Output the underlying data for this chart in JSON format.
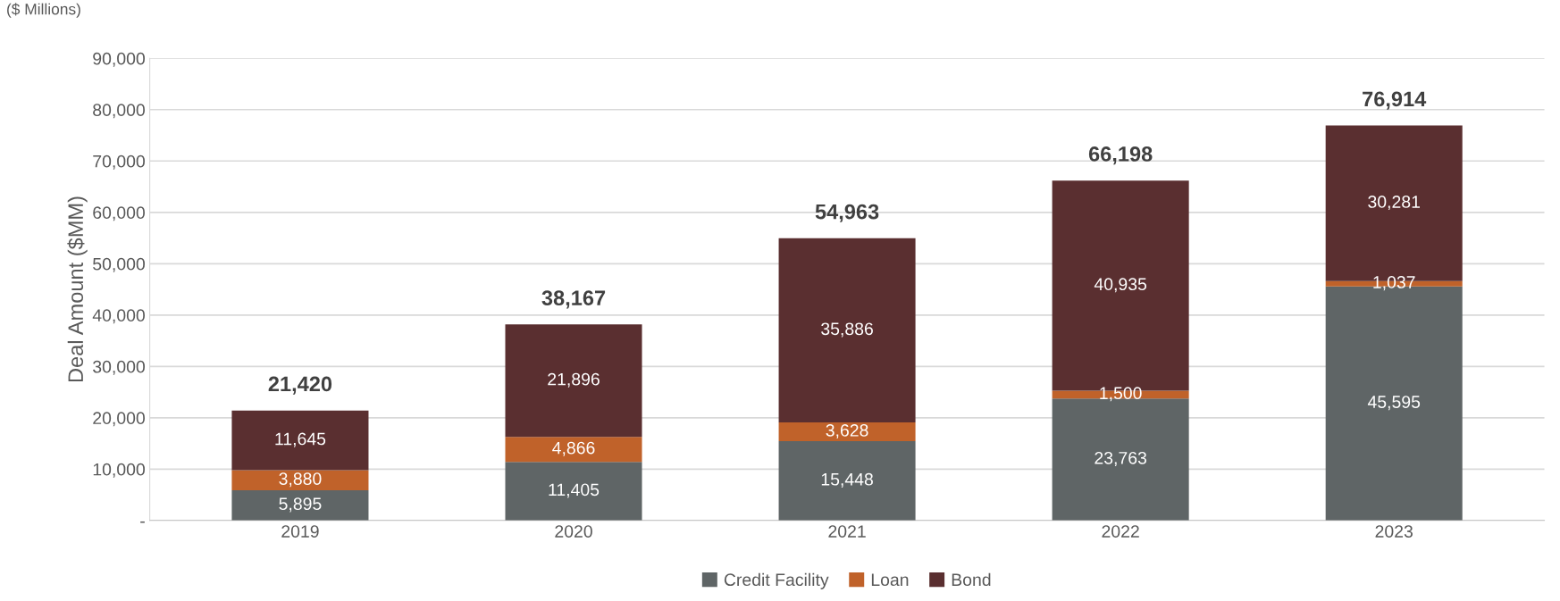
{
  "chart_data": {
    "type": "bar",
    "stacked": true,
    "ylabel": "Deal Amount ($MM)",
    "annotations": [
      "($ Millions)"
    ],
    "categories": [
      "2019",
      "2020",
      "2021",
      "2022",
      "2023"
    ],
    "series": [
      {
        "name": "Credit Facility",
        "color": "#5f6566",
        "values": [
          5895,
          11405,
          15448,
          23763,
          45595
        ],
        "value_labels": [
          "5,895",
          "11,405",
          "15,448",
          "23,763",
          "45,595"
        ]
      },
      {
        "name": "Loan",
        "color": "#c0622a",
        "values": [
          3880,
          4866,
          3628,
          1500,
          1037
        ],
        "value_labels": [
          "3,880",
          "4,866",
          "3,628",
          "1,500",
          "1,037"
        ]
      },
      {
        "name": "Bond",
        "color": "#5a2f30",
        "values": [
          11645,
          21896,
          35886,
          40935,
          30281
        ],
        "value_labels": [
          "11,645",
          "21,896",
          "35,886",
          "40,935",
          "30,281"
        ]
      }
    ],
    "totals": [
      "21,420",
      "38,167",
      "54,963",
      "66,198",
      "76,914"
    ],
    "ylim": [
      0,
      90000
    ],
    "yticks": [
      {
        "value": 0,
        "label": "-"
      },
      {
        "value": 10000,
        "label": "10,000"
      },
      {
        "value": 20000,
        "label": "20,000"
      },
      {
        "value": 30000,
        "label": "30,000"
      },
      {
        "value": 40000,
        "label": "40,000"
      },
      {
        "value": 50000,
        "label": "50,000"
      },
      {
        "value": 60000,
        "label": "60,000"
      },
      {
        "value": 70000,
        "label": "70,000"
      },
      {
        "value": 80000,
        "label": "80,000"
      },
      {
        "value": 90000,
        "label": "90,000"
      }
    ],
    "grid": "y",
    "legend": "bottom"
  }
}
